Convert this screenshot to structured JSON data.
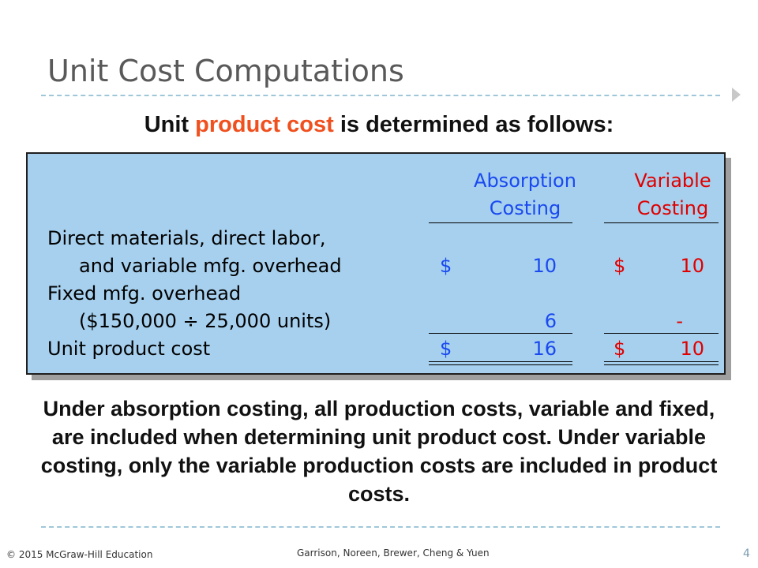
{
  "slide": {
    "title": "Unit Cost Computations",
    "subtitle": {
      "before": "Unit ",
      "highlight": "product cost",
      "after": " is determined as follows:"
    },
    "table": {
      "headers": {
        "absorption": [
          "Absorption",
          "Costing"
        ],
        "variable": [
          "Variable",
          "Costing"
        ]
      },
      "rows": [
        {
          "label_line1": "Direct materials, direct labor,",
          "label_line2": "and variable mfg. overhead",
          "absorption_sign": "$",
          "absorption_value": "10",
          "variable_sign": "$",
          "variable_value": "10"
        },
        {
          "label_line1": "Fixed mfg. overhead",
          "label_line2": "($150,000 ÷ 25,000 units)",
          "absorption_value": "6",
          "variable_value": "-"
        },
        {
          "label": "Unit product cost",
          "absorption_sign": "$",
          "absorption_value": "16",
          "variable_sign": "$",
          "variable_value": "10"
        }
      ]
    },
    "body": "Under absorption costing, all production costs, variable and fixed, are included when determining unit product cost. Under variable costing, only the variable production costs are included in product costs.",
    "footer": {
      "copyright": "© 2015 McGraw-Hill Education",
      "authors": "Garrison, Noreen, Brewer, Cheng & Yuen",
      "page_number": "4"
    }
  }
}
